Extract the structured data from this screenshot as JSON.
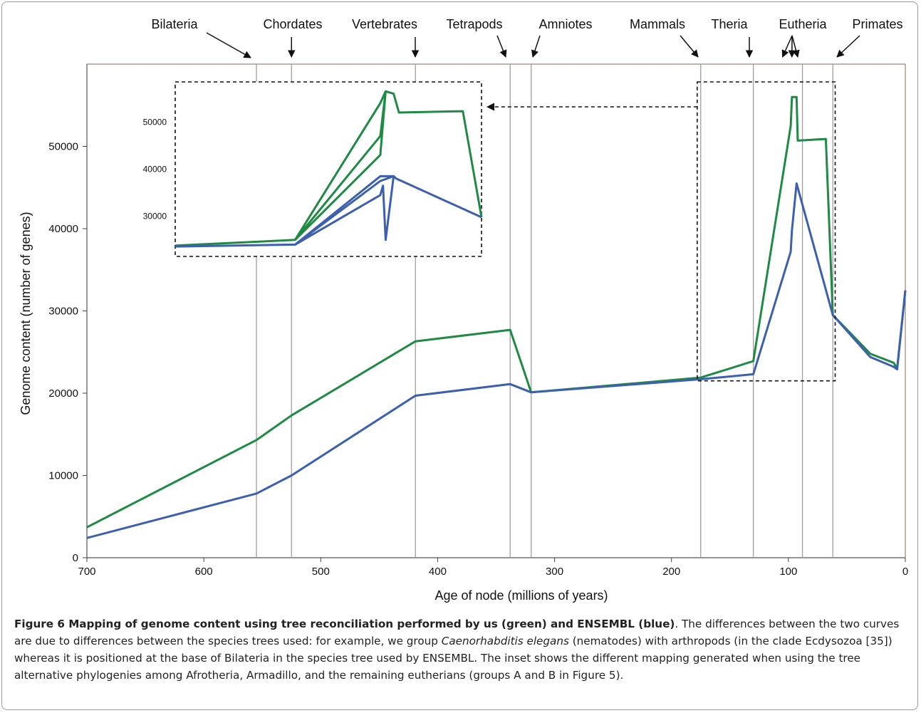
{
  "chart_data": {
    "type": "line",
    "xlabel": "Age of node (millions of years)",
    "ylabel": "Genome content (number of genes)",
    "xlim": [
      700,
      0
    ],
    "ylim": [
      0,
      60000
    ],
    "x_ticks": [
      700,
      600,
      500,
      400,
      300,
      200,
      100,
      0
    ],
    "y_ticks": [
      0,
      10000,
      20000,
      30000,
      40000,
      50000
    ],
    "grid": false,
    "clades": [
      {
        "name": "Bilateria",
        "age": 555
      },
      {
        "name": "Chordates",
        "age": 525
      },
      {
        "name": "Vertebrates",
        "age": 419
      },
      {
        "name": "Tetrapods",
        "age": 338
      },
      {
        "name": "Amniotes",
        "age": 320
      },
      {
        "name": "Mammals",
        "age": 175
      },
      {
        "name": "Theria",
        "age": 130
      },
      {
        "name": "Eutheria",
        "age": 88
      },
      {
        "name": "Primates",
        "age": 62
      }
    ],
    "eutheria_marks": [
      105,
      97,
      92
    ],
    "series": [
      {
        "color": "#1e8a43",
        "points": [
          [
            700,
            3700
          ],
          [
            555,
            14300
          ],
          [
            525,
            17300
          ],
          [
            419,
            26300
          ],
          [
            338,
            27700
          ],
          [
            320,
            20100
          ],
          [
            175,
            21900
          ],
          [
            130,
            23900
          ],
          [
            98,
            52500
          ],
          [
            97,
            56000
          ],
          [
            93,
            56000
          ],
          [
            92,
            50700
          ],
          [
            68,
            50900
          ],
          [
            62,
            29500
          ],
          [
            30,
            24800
          ],
          [
            10,
            23700
          ],
          [
            7,
            23000
          ],
          [
            0,
            32500
          ]
        ]
      },
      {
        "color": "#3c5fae",
        "points": [
          [
            700,
            2400
          ],
          [
            555,
            7800
          ],
          [
            525,
            10000
          ],
          [
            419,
            19700
          ],
          [
            338,
            21100
          ],
          [
            320,
            20100
          ],
          [
            175,
            21700
          ],
          [
            130,
            22300
          ],
          [
            98,
            37200
          ],
          [
            97,
            39800
          ],
          [
            93,
            45500
          ],
          [
            62,
            29500
          ],
          [
            30,
            24400
          ],
          [
            10,
            23200
          ],
          [
            7,
            22900
          ],
          [
            0,
            32500
          ]
        ]
      }
    ],
    "inset": {
      "y_ticks": [
        30000,
        40000,
        50000
      ],
      "lines": [
        {
          "color": "#1e8a43",
          "points": [
            [
              175,
              23800
            ],
            [
              130,
              25000
            ],
            [
              98,
              54000
            ],
            [
              96,
              56500
            ],
            [
              93,
              56000
            ],
            [
              91,
              52000
            ],
            [
              67,
              52300
            ],
            [
              60,
              29800
            ]
          ]
        },
        {
          "color": "#1e8a43",
          "points": [
            [
              130,
              25000
            ],
            [
              98,
              47000
            ],
            [
              96,
              56500
            ]
          ]
        },
        {
          "color": "#1e8a43",
          "points": [
            [
              130,
              25000
            ],
            [
              98,
              43000
            ],
            [
              96,
              56500
            ]
          ]
        },
        {
          "color": "#3c5fae",
          "points": [
            [
              175,
              23600
            ],
            [
              130,
              24000
            ],
            [
              98,
              34500
            ],
            [
              97,
              36500
            ],
            [
              96,
              25000
            ],
            [
              93,
              38500
            ],
            [
              92,
              38000
            ],
            [
              60,
              29800
            ]
          ]
        },
        {
          "color": "#3c5fae",
          "points": [
            [
              130,
              24000
            ],
            [
              98,
              37500
            ],
            [
              93,
              38500
            ]
          ]
        },
        {
          "color": "#3c5fae",
          "points": [
            [
              130,
              24000
            ],
            [
              98,
              38500
            ],
            [
              93,
              38500
            ]
          ]
        }
      ]
    }
  },
  "caption": {
    "title": "Figure 6 Mapping of genome content using tree reconciliation performed by us (green) and ENSEMBL (blue)",
    "text_1": ". The differences between the two curves are due to differences between the species trees used: for example, we group ",
    "species": "Caenorhabditis elegans",
    "text_2": " (nematodes) with arthropods (in the clade Ecdysozoa [35]) whereas it is positioned at the base of Bilateria in the species tree used by ENSEMBL. The inset shows the different mapping generated when using the tree alternative phylogenies among Afrotheria, Armadillo, and the remaining eutherians (groups A and B in Figure 5)."
  }
}
